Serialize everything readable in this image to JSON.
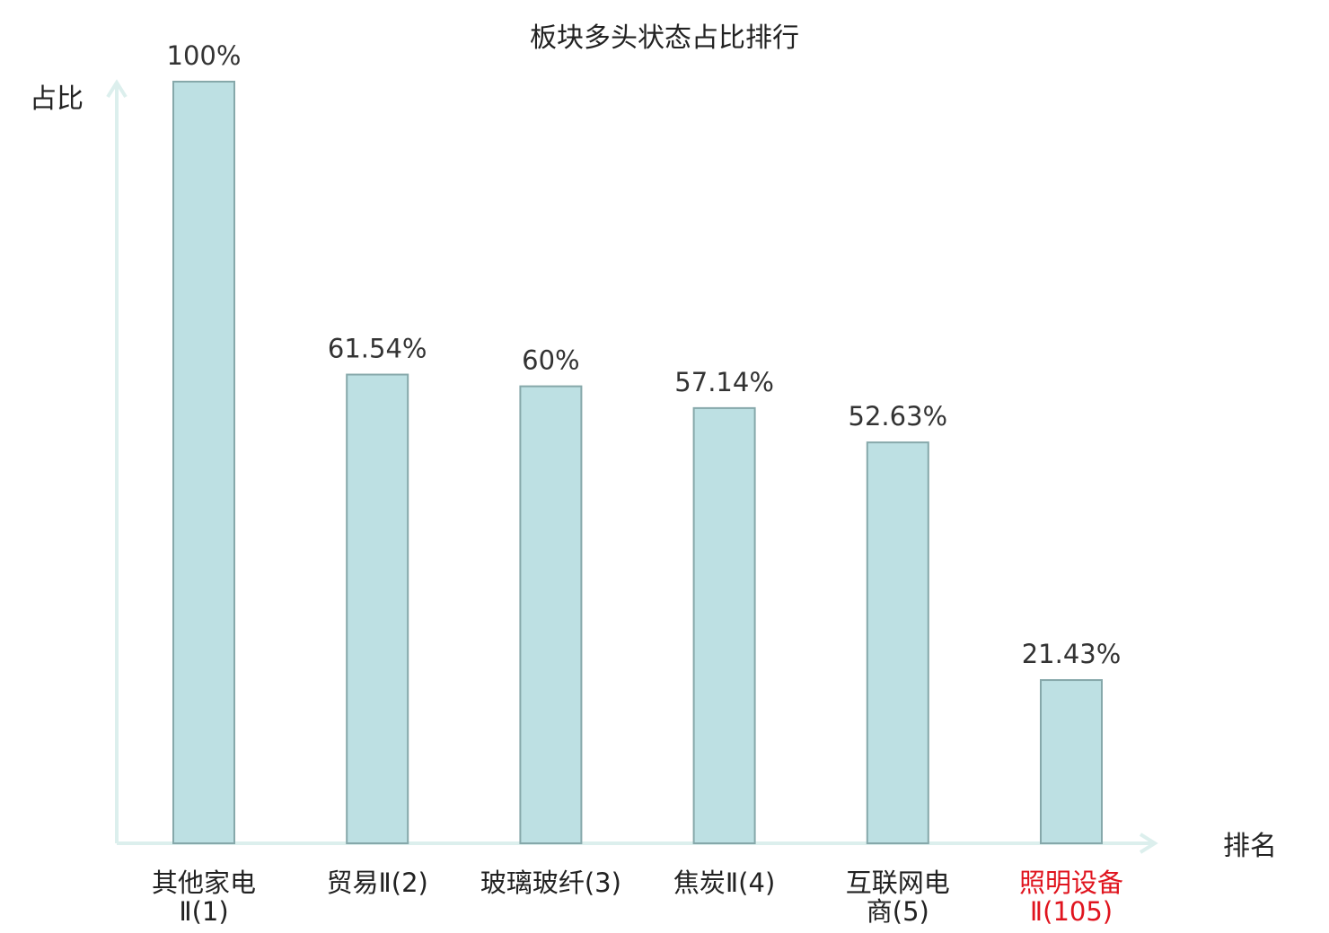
{
  "chart_data": {
    "type": "bar",
    "title": "板块多头状态占比排行",
    "ylabel": "占比",
    "xlabel": "排名",
    "ylim": [
      0,
      100
    ],
    "grid": false,
    "legend": "none",
    "categories": [
      {
        "line1": "其他家电",
        "line2": "Ⅱ(1)",
        "highlight": false
      },
      {
        "line1": "贸易Ⅱ(2)",
        "line2": "",
        "highlight": false
      },
      {
        "line1": "玻璃玻纤(3)",
        "line2": "",
        "highlight": false
      },
      {
        "line1": "焦炭Ⅱ(4)",
        "line2": "",
        "highlight": false
      },
      {
        "line1": "互联网电",
        "line2": "商(5)",
        "highlight": false
      },
      {
        "line1": "照明设备",
        "line2": "Ⅱ(105)",
        "highlight": true
      }
    ],
    "values": [
      100,
      61.54,
      60,
      57.14,
      52.63,
      21.43
    ],
    "value_labels": [
      "100%",
      "61.54%",
      "60%",
      "57.14%",
      "52.63%",
      "21.43%"
    ]
  },
  "colors": {
    "bar_fill": "#bde0e3",
    "bar_stroke": "#86a8aa",
    "axis": "#dcefed",
    "text": "#222222",
    "highlight": "#e0141e"
  }
}
